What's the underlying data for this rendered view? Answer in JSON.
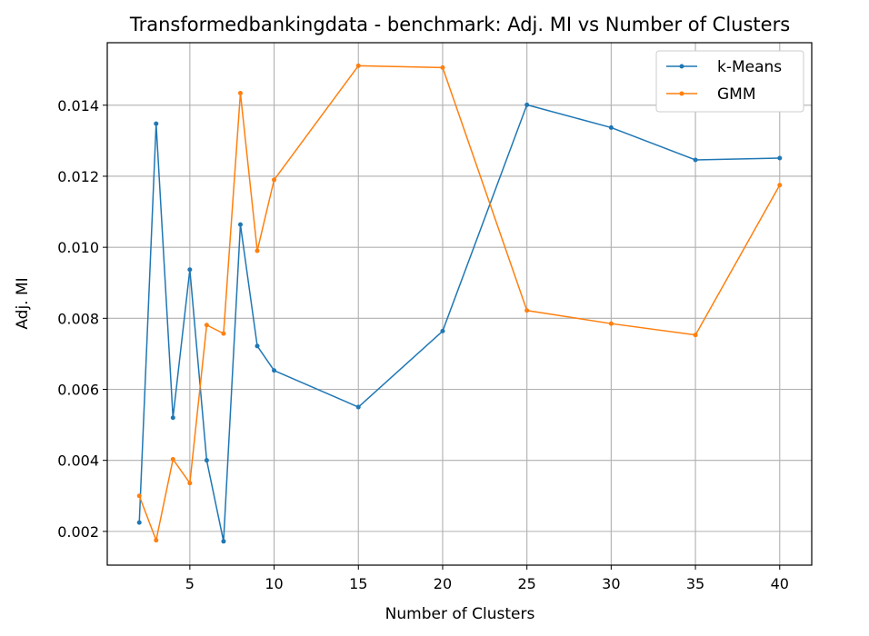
{
  "chart_data": {
    "type": "line",
    "title": "Transformedbankingdata - benchmark: Adj. MI vs Number of Clusters",
    "xlabel": "Number of Clusters",
    "ylabel": "Adj. MI",
    "x": [
      2,
      3,
      4,
      5,
      6,
      7,
      8,
      9,
      10,
      15,
      20,
      25,
      30,
      35,
      40
    ],
    "xlim": [
      0.1,
      41.9
    ],
    "ylim": [
      0.00105,
      0.01576
    ],
    "xticks": [
      5,
      10,
      15,
      20,
      25,
      30,
      35,
      40
    ],
    "xtick_labels": [
      "5",
      "10",
      "15",
      "20",
      "25",
      "30",
      "35",
      "40"
    ],
    "yticks": [
      0.002,
      0.004,
      0.006,
      0.008,
      0.01,
      0.012,
      0.014
    ],
    "ytick_labels": [
      "0.002",
      "0.004",
      "0.006",
      "0.008",
      "0.010",
      "0.012",
      "0.014"
    ],
    "grid": true,
    "legend_position": "top-right",
    "series": [
      {
        "name": "k-Means",
        "color": "#1f77b4",
        "values": [
          0.00225,
          0.01348,
          0.0052,
          0.00937,
          0.004,
          0.00172,
          0.01064,
          0.00722,
          0.00653,
          0.0055,
          0.00764,
          0.01401,
          0.01337,
          0.01246,
          0.01251
        ]
      },
      {
        "name": "GMM",
        "color": "#ff7f0e",
        "values": [
          0.003,
          0.00175,
          0.00403,
          0.00336,
          0.00781,
          0.00757,
          0.01434,
          0.0099,
          0.0119,
          0.01511,
          0.01506,
          0.00822,
          0.00785,
          0.00753,
          0.01175
        ]
      }
    ]
  }
}
